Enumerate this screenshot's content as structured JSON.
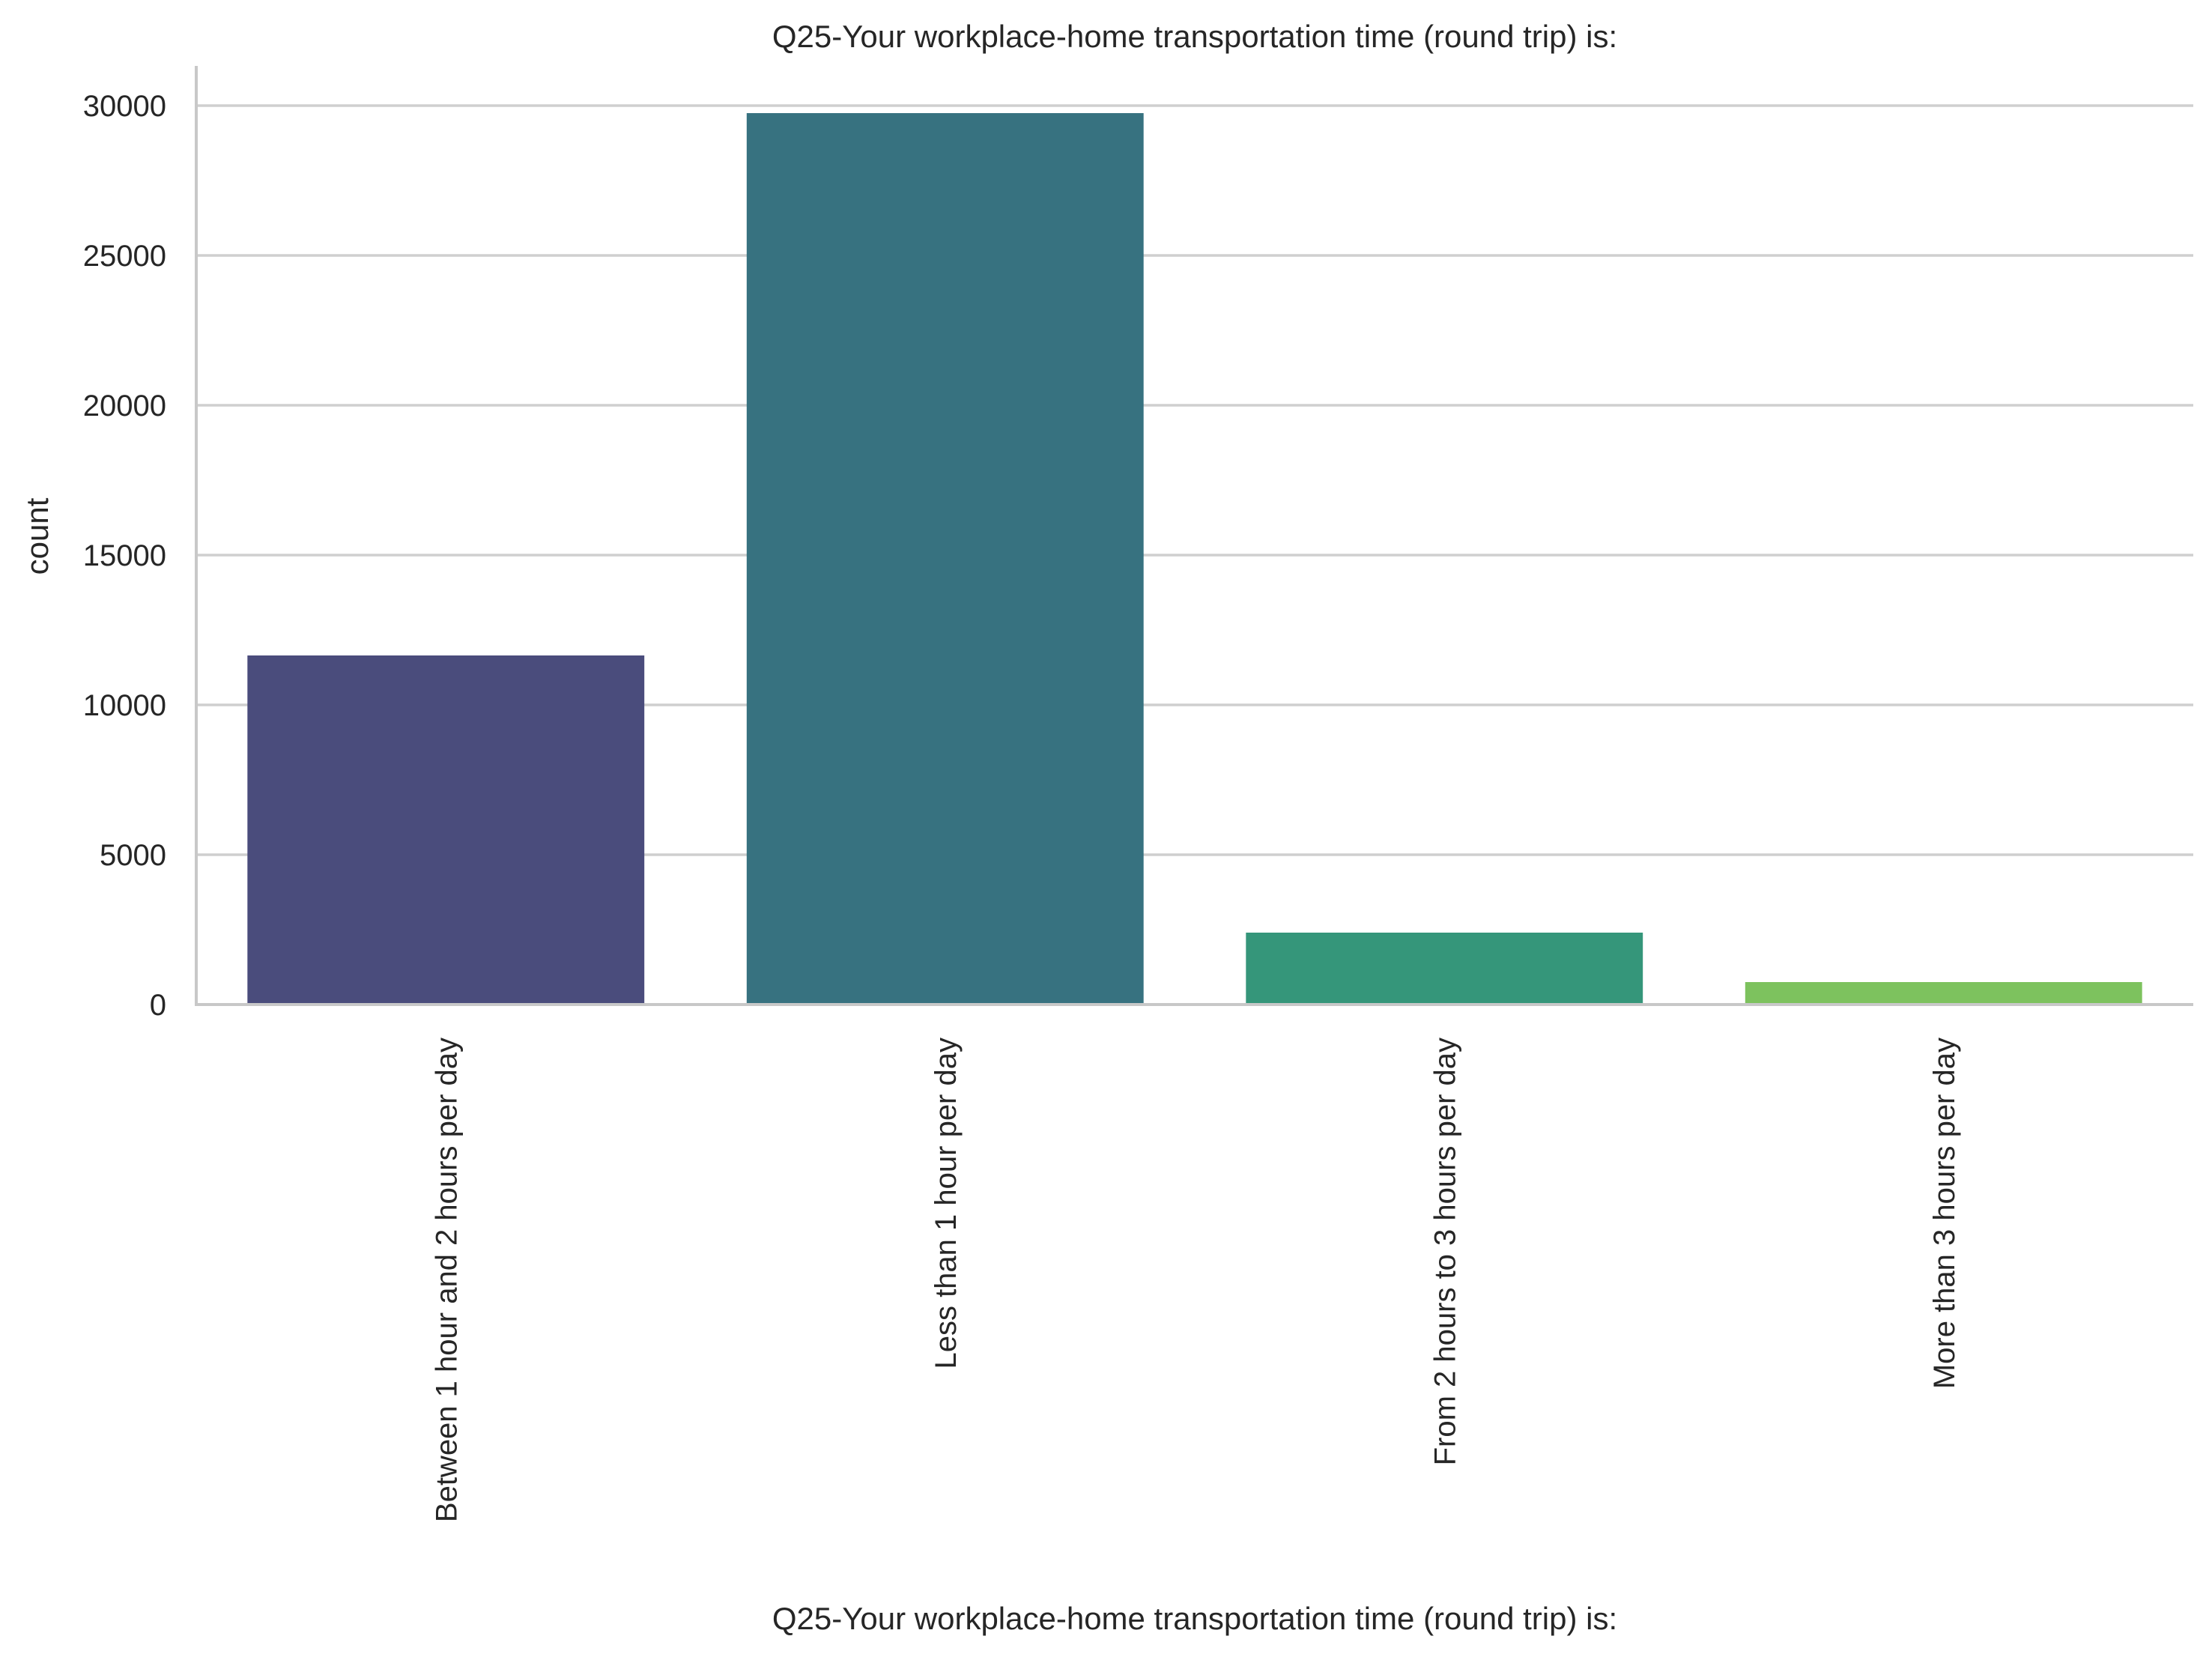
{
  "chart_data": {
    "type": "bar",
    "title": "Q25-Your workplace-home transportation time (round trip) is:",
    "xlabel": "Q25-Your workplace-home transportation time (round trip) is:",
    "ylabel": "count",
    "categories": [
      "Between 1 hour and 2 hours per day",
      "Less than 1 hour per day",
      "From 2 hours to 3 hours per day",
      "More than 3 hours per day"
    ],
    "values": [
      11650,
      29750,
      2400,
      750
    ],
    "colors": [
      "#4a4c7c",
      "#377280",
      "#35967a",
      "#7dc25e"
    ],
    "ylim": [
      0,
      31300
    ],
    "yticks": [
      0,
      5000,
      10000,
      15000,
      20000,
      25000,
      30000
    ],
    "grid": "horizontal",
    "legend": "none"
  }
}
